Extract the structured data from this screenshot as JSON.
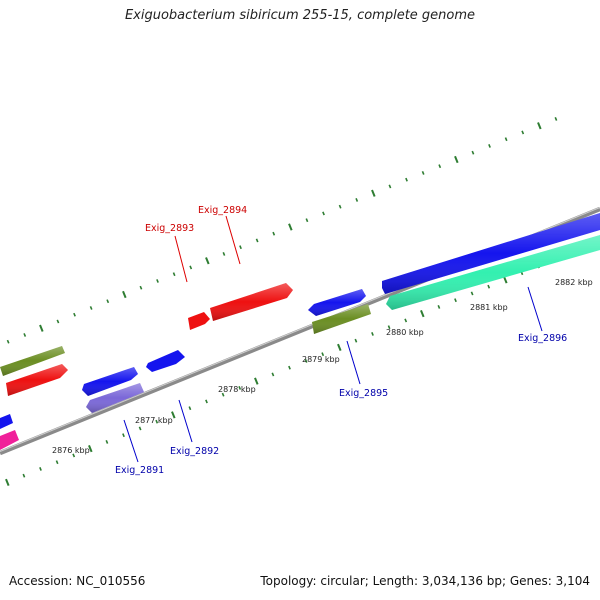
{
  "title": "Exiguobacterium sibiricum 255-15, complete genome",
  "footer": {
    "accession": "Accession: NC_010556",
    "summary": "Topology: circular; Length: 3,034,136 bp; Genes: 3,104"
  },
  "colors": {
    "backbone": "#8a8a8a",
    "tick": "#2e7d32",
    "label_forward": "#cc0000",
    "label_reverse": "#0000aa",
    "leader_forward": "#dd0000",
    "leader_reverse": "#0000cc"
  },
  "ruler": {
    "unit": "kbp",
    "labels": [
      "2876 kbp",
      "2877 kbp",
      "2878 kbp",
      "2879 kbp",
      "2880 kbp",
      "2881 kbp",
      "2882 kbp"
    ]
  },
  "gene_labels": [
    {
      "name": "Exig_2893",
      "strand": "forward"
    },
    {
      "name": "Exig_2894",
      "strand": "forward"
    },
    {
      "name": "Exig_2895",
      "strand": "reverse"
    },
    {
      "name": "Exig_2896",
      "strand": "reverse"
    },
    {
      "name": "Exig_2891",
      "strand": "reverse"
    },
    {
      "name": "Exig_2892",
      "strand": "reverse"
    }
  ],
  "feature_colors": {
    "red": "#ee1111",
    "blue": "#1515ee",
    "olive": "#6b8e23",
    "aqua": "#33f0b0",
    "purple": "#7b68d8",
    "pink": "#f0209a"
  }
}
